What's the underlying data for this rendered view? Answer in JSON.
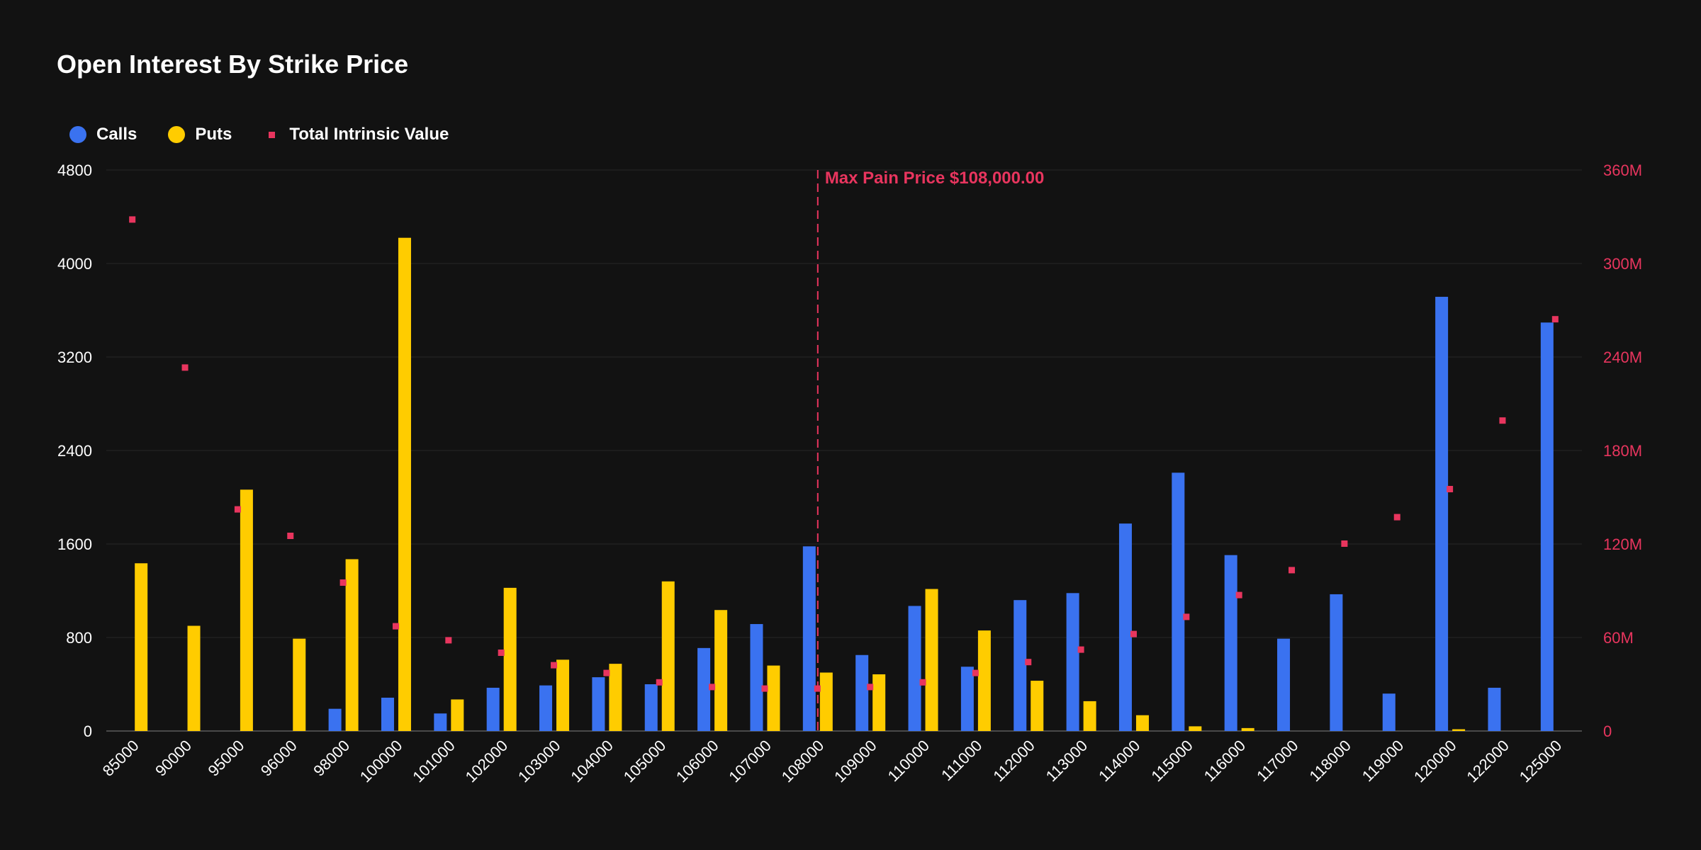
{
  "chart_data": {
    "type": "bar",
    "title": "Open Interest By Strike Price",
    "categories": [
      "85000",
      "90000",
      "95000",
      "96000",
      "98000",
      "100000",
      "101000",
      "102000",
      "103000",
      "104000",
      "105000",
      "106000",
      "107000",
      "108000",
      "109000",
      "110000",
      "111000",
      "112000",
      "113000",
      "114000",
      "115000",
      "116000",
      "117000",
      "118000",
      "119000",
      "120000",
      "122000",
      "125000"
    ],
    "series": [
      {
        "name": "Calls",
        "color": "#3a72f0",
        "values": [
          0,
          0,
          0,
          0,
          190,
          285,
          150,
          370,
          390,
          460,
          400,
          710,
          915,
          1580,
          650,
          1070,
          550,
          1120,
          1180,
          1775,
          2210,
          1505,
          790,
          1170,
          320,
          3715,
          370,
          3495
        ]
      },
      {
        "name": "Puts",
        "color": "#ffcc00",
        "values": [
          1435,
          900,
          2065,
          790,
          1470,
          4220,
          270,
          1225,
          610,
          575,
          1280,
          1035,
          560,
          500,
          485,
          1215,
          860,
          430,
          255,
          135,
          40,
          25,
          0,
          0,
          0,
          15,
          0,
          0
        ]
      },
      {
        "name": "Total Intrinsic Value",
        "color": "#e8355e",
        "axis": "right",
        "values": [
          328,
          233,
          142,
          125,
          95,
          67,
          58,
          50,
          42,
          37,
          31,
          28,
          27,
          27,
          28,
          31,
          37,
          44,
          52,
          62,
          73,
          87,
          103,
          120,
          137,
          155,
          199,
          264
        ]
      }
    ],
    "ylim": [
      0,
      4800
    ],
    "yticks": [
      0,
      800,
      1600,
      2400,
      3200,
      4000,
      4800
    ],
    "y2lim": [
      0,
      360
    ],
    "y2ticks": [
      0,
      60,
      120,
      180,
      240,
      300,
      360
    ],
    "y2tick_labels": [
      "0",
      "60M",
      "120M",
      "180M",
      "240M",
      "300M",
      "360M"
    ],
    "annotation": {
      "label": "Max Pain Price $108,000.00",
      "category": "108000",
      "color": "#e8355e"
    },
    "legend": [
      "Calls",
      "Puts",
      "Total Intrinsic Value"
    ]
  }
}
